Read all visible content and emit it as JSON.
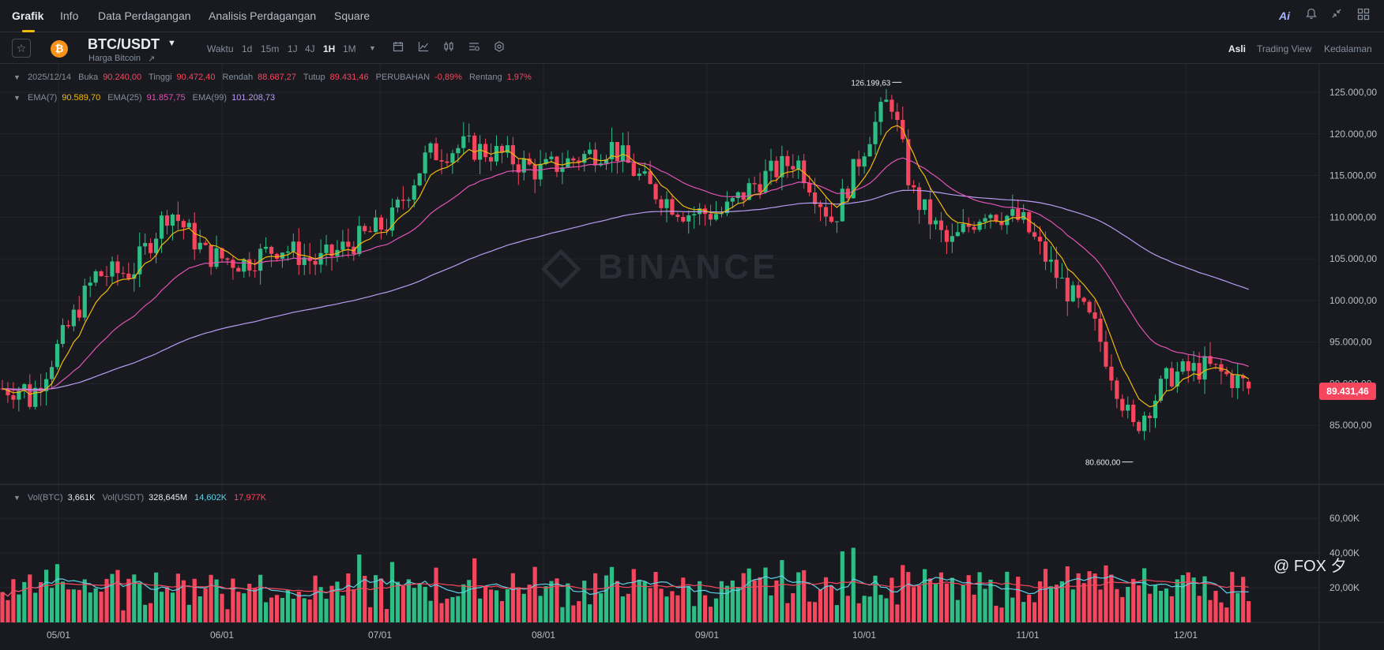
{
  "nav": {
    "tabs": [
      {
        "label": "Grafik"
      },
      {
        "label": "Info"
      },
      {
        "label": "Data Perdagangan"
      },
      {
        "label": "Analisis Perdagangan"
      },
      {
        "label": "Square"
      }
    ],
    "ai_label": "Ai"
  },
  "toolbar": {
    "symbol": "BTC/USDT",
    "coin_glyph": "₿",
    "subtitle": "Harga Bitcoin",
    "timeframe_label": "Waktu",
    "timeframes": [
      "1d",
      "15m",
      "1J",
      "4J",
      "1H",
      "1M"
    ],
    "active_timeframe": "1H",
    "views": [
      "Asli",
      "Trading View",
      "Kedalaman"
    ],
    "active_view": "Asli"
  },
  "ohlc": {
    "date": "2025/12/14",
    "open_label": "Buka",
    "open": "90.240,00",
    "high_label": "Tinggi",
    "high": "90.472,40",
    "low_label": "Rendah",
    "low": "88.687,27",
    "close_label": "Tutup",
    "close": "89.431,46",
    "change_label": "PERUBAHAN",
    "change": "-0,89%",
    "range_label": "Rentang",
    "range": "1,97%"
  },
  "ema": {
    "ema7_label": "EMA(7)",
    "ema7": "90.589,70",
    "ema25_label": "EMA(25)",
    "ema25": "91.857,75",
    "ema99_label": "EMA(99)",
    "ema99": "101.208,73"
  },
  "volume": {
    "btc_label": "Vol(BTC)",
    "btc": "3,661K",
    "usdt_label": "Vol(USDT)",
    "usdt": "328,645M",
    "ma1": "14,602K",
    "ma2": "17,977K"
  },
  "watermark": "BINANCE",
  "current_price": "89.431,46",
  "footer": "@ FOX 夕",
  "colors": {
    "up": "#2ebd85",
    "down": "#f6465d",
    "ema7": "#f0b90b",
    "ema25": "#e154b3",
    "ema99": "#b99cf3",
    "vol_ma1": "#5fd2e6",
    "vol_ma2": "#f6465d"
  },
  "chart_data": {
    "type": "candlestick",
    "price_axis_ticks": [
      "125.000,00",
      "120.000,00",
      "115.000,00",
      "110.000,00",
      "105.000,00",
      "100.000,00",
      "95.000,00",
      "90.000,00",
      "85.000,00"
    ],
    "volume_axis_ticks": [
      "60,00K",
      "40,00K",
      "20,00K"
    ],
    "x_ticks": [
      "05/01",
      "06/01",
      "07/01",
      "08/01",
      "09/01",
      "10/01",
      "11/01",
      "12/01"
    ],
    "annotations": {
      "max": "126.199,63",
      "min": "80.600,00"
    },
    "approx_close_path": [
      [
        "04/24",
        87500
      ],
      [
        "05/01",
        94500
      ],
      [
        "05/08",
        103000
      ],
      [
        "05/15",
        103500
      ],
      [
        "05/22",
        111000
      ],
      [
        "05/29",
        105500
      ],
      [
        "06/05",
        104500
      ],
      [
        "06/12",
        106500
      ],
      [
        "06/19",
        104500
      ],
      [
        "06/26",
        107000
      ],
      [
        "07/03",
        109500
      ],
      [
        "07/10",
        117500
      ],
      [
        "07/17",
        118500
      ],
      [
        "07/24",
        117500
      ],
      [
        "07/31",
        115500
      ],
      [
        "08/07",
        117000
      ],
      [
        "08/14",
        118500
      ],
      [
        "08/21",
        113500
      ],
      [
        "08/28",
        110500
      ],
      [
        "09/04",
        110500
      ],
      [
        "09/11",
        114500
      ],
      [
        "09/18",
        117000
      ],
      [
        "09/25",
        109500
      ],
      [
        "10/02",
        120000
      ],
      [
        "10/06",
        124500
      ],
      [
        "10/10",
        113000
      ],
      [
        "10/17",
        106500
      ],
      [
        "10/24",
        111000
      ],
      [
        "10/31",
        109500
      ],
      [
        "11/07",
        102500
      ],
      [
        "11/14",
        96500
      ],
      [
        "11/21",
        84500
      ],
      [
        "11/28",
        91000
      ],
      [
        "12/05",
        92000
      ],
      [
        "12/14",
        89431
      ]
    ]
  }
}
